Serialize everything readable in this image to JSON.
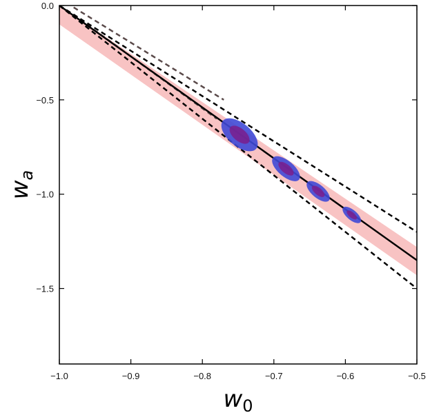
{
  "chart_data": {
    "type": "line",
    "xlabel": "w",
    "xlabel_sub": "0",
    "ylabel": "w",
    "ylabel_sub": "a",
    "xlim": [
      -1.0,
      -0.5
    ],
    "ylim": [
      -1.9,
      0.0
    ],
    "xticks": [
      -1.0,
      -0.9,
      -0.8,
      -0.7,
      -0.6,
      -0.5
    ],
    "xtick_labels": [
      "−1.0",
      "−0.9",
      "−0.8",
      "−0.7",
      "−0.6",
      "−0.5"
    ],
    "yticks": [
      0.0,
      -0.5,
      -1.0,
      -1.5
    ],
    "ytick_labels": [
      "0.0",
      "−0.5",
      "−1.0",
      "−1.5"
    ],
    "grid": false,
    "legend": "none",
    "colors": {
      "band": "#f7b9b9",
      "main_line": "#000000",
      "dashed_outer": "#000000",
      "dashed_inner": "#5a4a4a",
      "ellipse_outer": "#3f49d6",
      "ellipse_inner": "#7a1f8c"
    },
    "series": [
      {
        "kind": "band",
        "x": [
          -1.0,
          -0.5
        ],
        "y_upper": [
          0.0,
          -1.28
        ],
        "y_lower": [
          -0.1,
          -1.43
        ]
      },
      {
        "kind": "solid-line",
        "x": [
          -1.0,
          -0.5
        ],
        "y": [
          0.0,
          -1.35
        ]
      },
      {
        "kind": "dashed-line",
        "x": [
          -1.0,
          -0.5
        ],
        "y": [
          0.0,
          -1.2
        ]
      },
      {
        "kind": "dashed-line",
        "x": [
          -1.0,
          -0.5
        ],
        "y": [
          0.0,
          -1.5
        ]
      },
      {
        "kind": "dashed-line-inner",
        "x": [
          -0.98,
          -0.77
        ],
        "y": [
          -0.01,
          -0.5
        ]
      },
      {
        "kind": "dashed-line-inner",
        "x": [
          -0.98,
          -0.78
        ],
        "y": [
          -0.05,
          -0.6
        ]
      }
    ],
    "ellipses": [
      {
        "x": -0.748,
        "y": -0.685,
        "rx": 0.016,
        "ry": 0.115,
        "angle": -50
      },
      {
        "x": -0.683,
        "y": -0.865,
        "rx": 0.011,
        "ry": 0.09,
        "angle": -50
      },
      {
        "x": -0.638,
        "y": -0.985,
        "rx": 0.009,
        "ry": 0.075,
        "angle": -50
      },
      {
        "x": -0.591,
        "y": -1.11,
        "rx": 0.007,
        "ry": 0.06,
        "angle": -50
      }
    ]
  }
}
